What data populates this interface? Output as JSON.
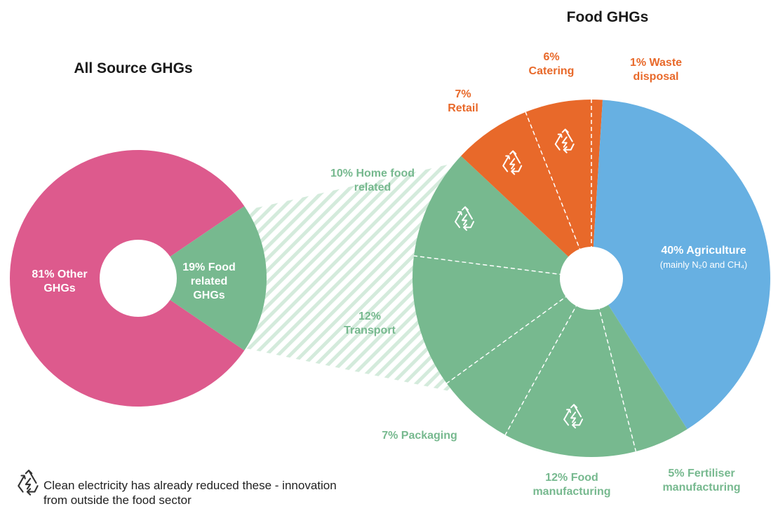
{
  "chart_data": [
    {
      "type": "pie",
      "title": "All Source GHGs",
      "categories": [
        "Other GHGs",
        "Food related GHGs"
      ],
      "values": [
        81,
        19
      ],
      "value_labels": [
        "81%",
        "19%"
      ],
      "colors": [
        "#dd5a8d",
        "#77b98f"
      ]
    },
    {
      "type": "pie",
      "title": "Food GHGs",
      "categories": [
        "Waste disposal",
        "Agriculture",
        "Fertiliser manufacturing",
        "Food manufacturing",
        "Packaging",
        "Transport",
        "Home food related",
        "Retail",
        "Catering"
      ],
      "values": [
        1,
        40,
        5,
        12,
        7,
        12,
        10,
        7,
        6
      ],
      "value_labels": [
        "1%",
        "40%",
        "5%",
        "12%",
        "7%",
        "12%",
        "10%",
        "7%",
        "6%"
      ],
      "colors": [
        "#e8692a",
        "#67b0e2",
        "#77b98f",
        "#77b98f",
        "#77b98f",
        "#77b98f",
        "#77b98f",
        "#e8692a",
        "#e8692a"
      ],
      "annotation": "(mainly N₂0 and CH₄)",
      "clean_electricity_reduced": [
        false,
        false,
        false,
        true,
        false,
        false,
        true,
        true,
        true
      ],
      "legend_note": "Clean electricity has already reduced these - innovation from outside the food sector"
    }
  ]
}
